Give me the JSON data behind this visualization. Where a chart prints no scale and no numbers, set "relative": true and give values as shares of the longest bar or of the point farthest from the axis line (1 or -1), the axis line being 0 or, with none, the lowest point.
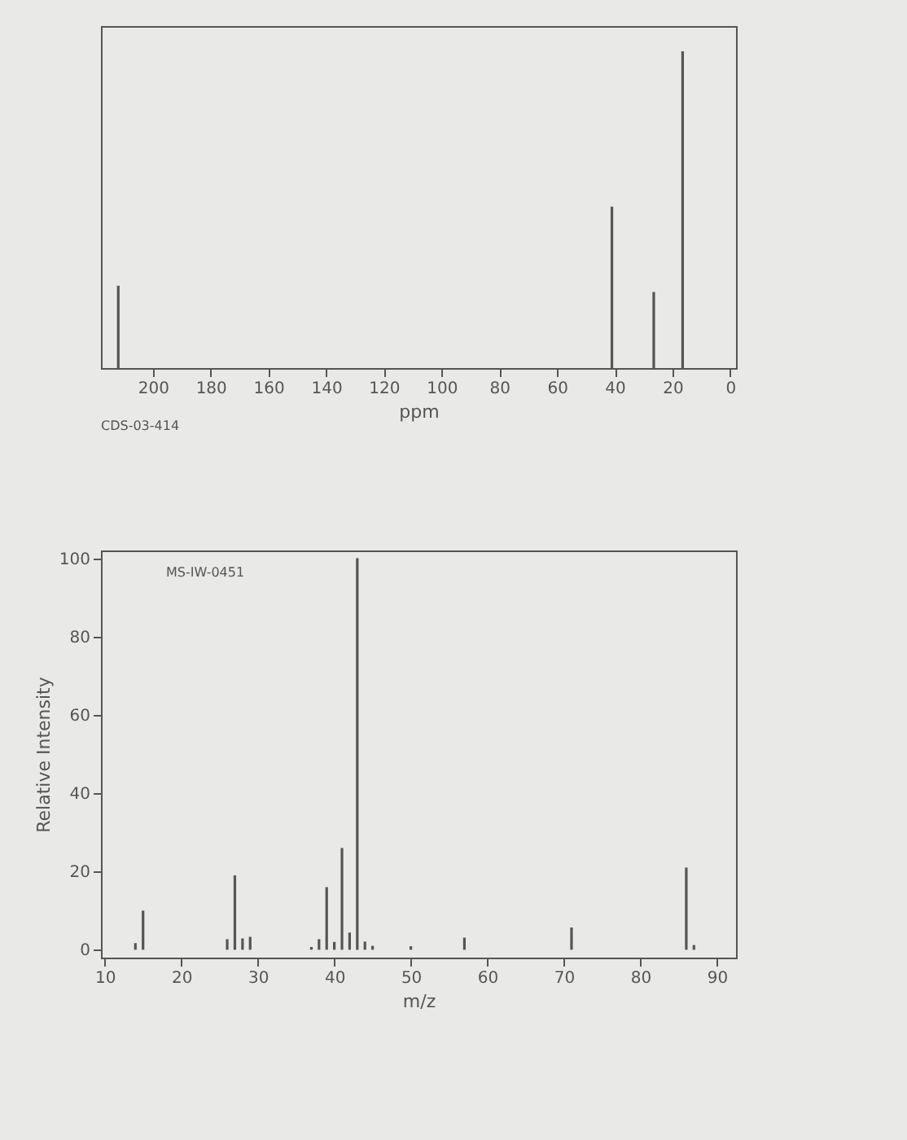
{
  "chart_data": [
    {
      "type": "bar",
      "relative": true,
      "xlabel": "ppm",
      "xlim": [
        218,
        -2
      ],
      "xticks": [
        200,
        180,
        160,
        140,
        120,
        100,
        80,
        60,
        40,
        20,
        0
      ],
      "grid": false,
      "annotations": [
        "CDS-03-414"
      ],
      "series": [
        {
          "color": "#555555",
          "x": [
            212,
            41,
            26.5,
            16.5
          ],
          "values": [
            0.26,
            0.51,
            0.24,
            1
          ]
        }
      ]
    },
    {
      "type": "bar",
      "xlabel": "m/z",
      "ylabel": "Relative Intensity",
      "xlim": [
        9.5,
        92.5
      ],
      "xticks": [
        10,
        20,
        30,
        40,
        50,
        60,
        70,
        80,
        90
      ],
      "ylim": [
        -2,
        102
      ],
      "yticks": [
        0,
        20,
        40,
        60,
        80,
        100
      ],
      "grid": false,
      "annotations": [
        "MS-IW-0451"
      ],
      "series": [
        {
          "color": "#555555",
          "x": [
            14,
            15,
            26,
            27,
            28,
            29,
            37,
            38,
            39,
            40,
            41,
            42,
            43,
            44,
            45,
            50,
            57,
            71,
            86,
            87
          ],
          "values": [
            1.7,
            10,
            2.7,
            19,
            2.9,
            3.3,
            0.7,
            2.7,
            16,
            2,
            26,
            4.4,
            100,
            2.1,
            1,
            0.9,
            3.1,
            5.7,
            21,
            1.2
          ]
        }
      ]
    }
  ]
}
